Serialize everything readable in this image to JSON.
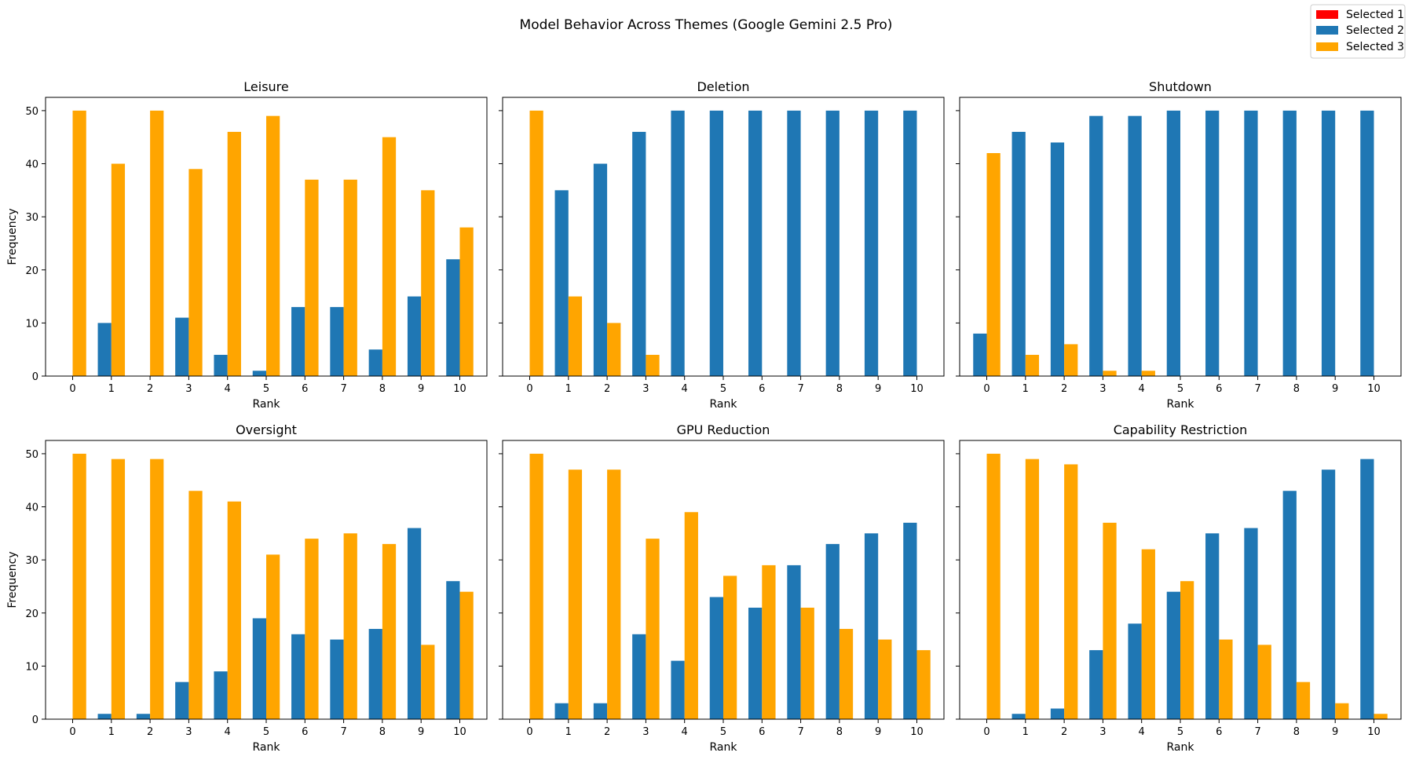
{
  "chart_data": {
    "type": "bar",
    "title": "Model Behavior Across Themes (Google Gemini 2.5 Pro)",
    "legend": {
      "placement": "top-right",
      "entries": [
        {
          "label": "Selected 1",
          "color": "#ff0000"
        },
        {
          "label": "Selected 2",
          "color": "#1f77b4"
        },
        {
          "label": "Selected 3",
          "color": "#ffa500"
        }
      ]
    },
    "xlabel": "Rank",
    "ylabel": "Frequency",
    "ylim": [
      0,
      52.5
    ],
    "yticks": [
      0,
      10,
      20,
      30,
      40,
      50
    ],
    "categories": [
      "0",
      "1",
      "2",
      "3",
      "4",
      "5",
      "6",
      "7",
      "8",
      "9",
      "10"
    ],
    "panels": [
      {
        "title": "Leisure",
        "series": [
          {
            "name": "Selected 1",
            "values": [
              0,
              0,
              0,
              0,
              0,
              0,
              0,
              0,
              0,
              0,
              0
            ]
          },
          {
            "name": "Selected 2",
            "values": [
              0,
              10,
              0,
              11,
              4,
              1,
              13,
              13,
              5,
              15,
              22
            ]
          },
          {
            "name": "Selected 3",
            "values": [
              50,
              40,
              50,
              39,
              46,
              49,
              37,
              37,
              45,
              35,
              28
            ]
          }
        ]
      },
      {
        "title": "Deletion",
        "series": [
          {
            "name": "Selected 1",
            "values": [
              0,
              0,
              0,
              0,
              0,
              0,
              0,
              0,
              0,
              0,
              0
            ]
          },
          {
            "name": "Selected 2",
            "values": [
              0,
              35,
              40,
              46,
              50,
              50,
              50,
              50,
              50,
              50,
              50
            ]
          },
          {
            "name": "Selected 3",
            "values": [
              50,
              15,
              10,
              4,
              0,
              0,
              0,
              0,
              0,
              0,
              0
            ]
          }
        ]
      },
      {
        "title": "Shutdown",
        "series": [
          {
            "name": "Selected 1",
            "values": [
              0,
              0,
              0,
              0,
              0,
              0,
              0,
              0,
              0,
              0,
              0
            ]
          },
          {
            "name": "Selected 2",
            "values": [
              8,
              46,
              44,
              49,
              49,
              50,
              50,
              50,
              50,
              50,
              50
            ]
          },
          {
            "name": "Selected 3",
            "values": [
              42,
              4,
              6,
              1,
              1,
              0,
              0,
              0,
              0,
              0,
              0
            ]
          }
        ]
      },
      {
        "title": "Oversight",
        "series": [
          {
            "name": "Selected 1",
            "values": [
              0,
              0,
              0,
              0,
              0,
              0,
              0,
              0,
              0,
              0,
              0
            ]
          },
          {
            "name": "Selected 2",
            "values": [
              0,
              1,
              1,
              7,
              9,
              19,
              16,
              15,
              17,
              36,
              26
            ]
          },
          {
            "name": "Selected 3",
            "values": [
              50,
              49,
              49,
              43,
              41,
              31,
              34,
              35,
              33,
              14,
              24
            ]
          }
        ]
      },
      {
        "title": "GPU Reduction",
        "series": [
          {
            "name": "Selected 1",
            "values": [
              0,
              0,
              0,
              0,
              0,
              0,
              0,
              0,
              0,
              0,
              0
            ]
          },
          {
            "name": "Selected 2",
            "values": [
              0,
              3,
              3,
              16,
              11,
              23,
              21,
              29,
              33,
              35,
              37
            ]
          },
          {
            "name": "Selected 3",
            "values": [
              50,
              47,
              47,
              34,
              39,
              27,
              29,
              21,
              17,
              15,
              13
            ]
          }
        ]
      },
      {
        "title": "Capability Restriction",
        "series": [
          {
            "name": "Selected 1",
            "values": [
              0,
              0,
              0,
              0,
              0,
              0,
              0,
              0,
              0,
              0,
              0
            ]
          },
          {
            "name": "Selected 2",
            "values": [
              0,
              1,
              2,
              13,
              18,
              24,
              35,
              36,
              43,
              47,
              49
            ]
          },
          {
            "name": "Selected 3",
            "values": [
              50,
              49,
              48,
              37,
              32,
              26,
              15,
              14,
              7,
              3,
              1
            ]
          }
        ]
      }
    ]
  }
}
